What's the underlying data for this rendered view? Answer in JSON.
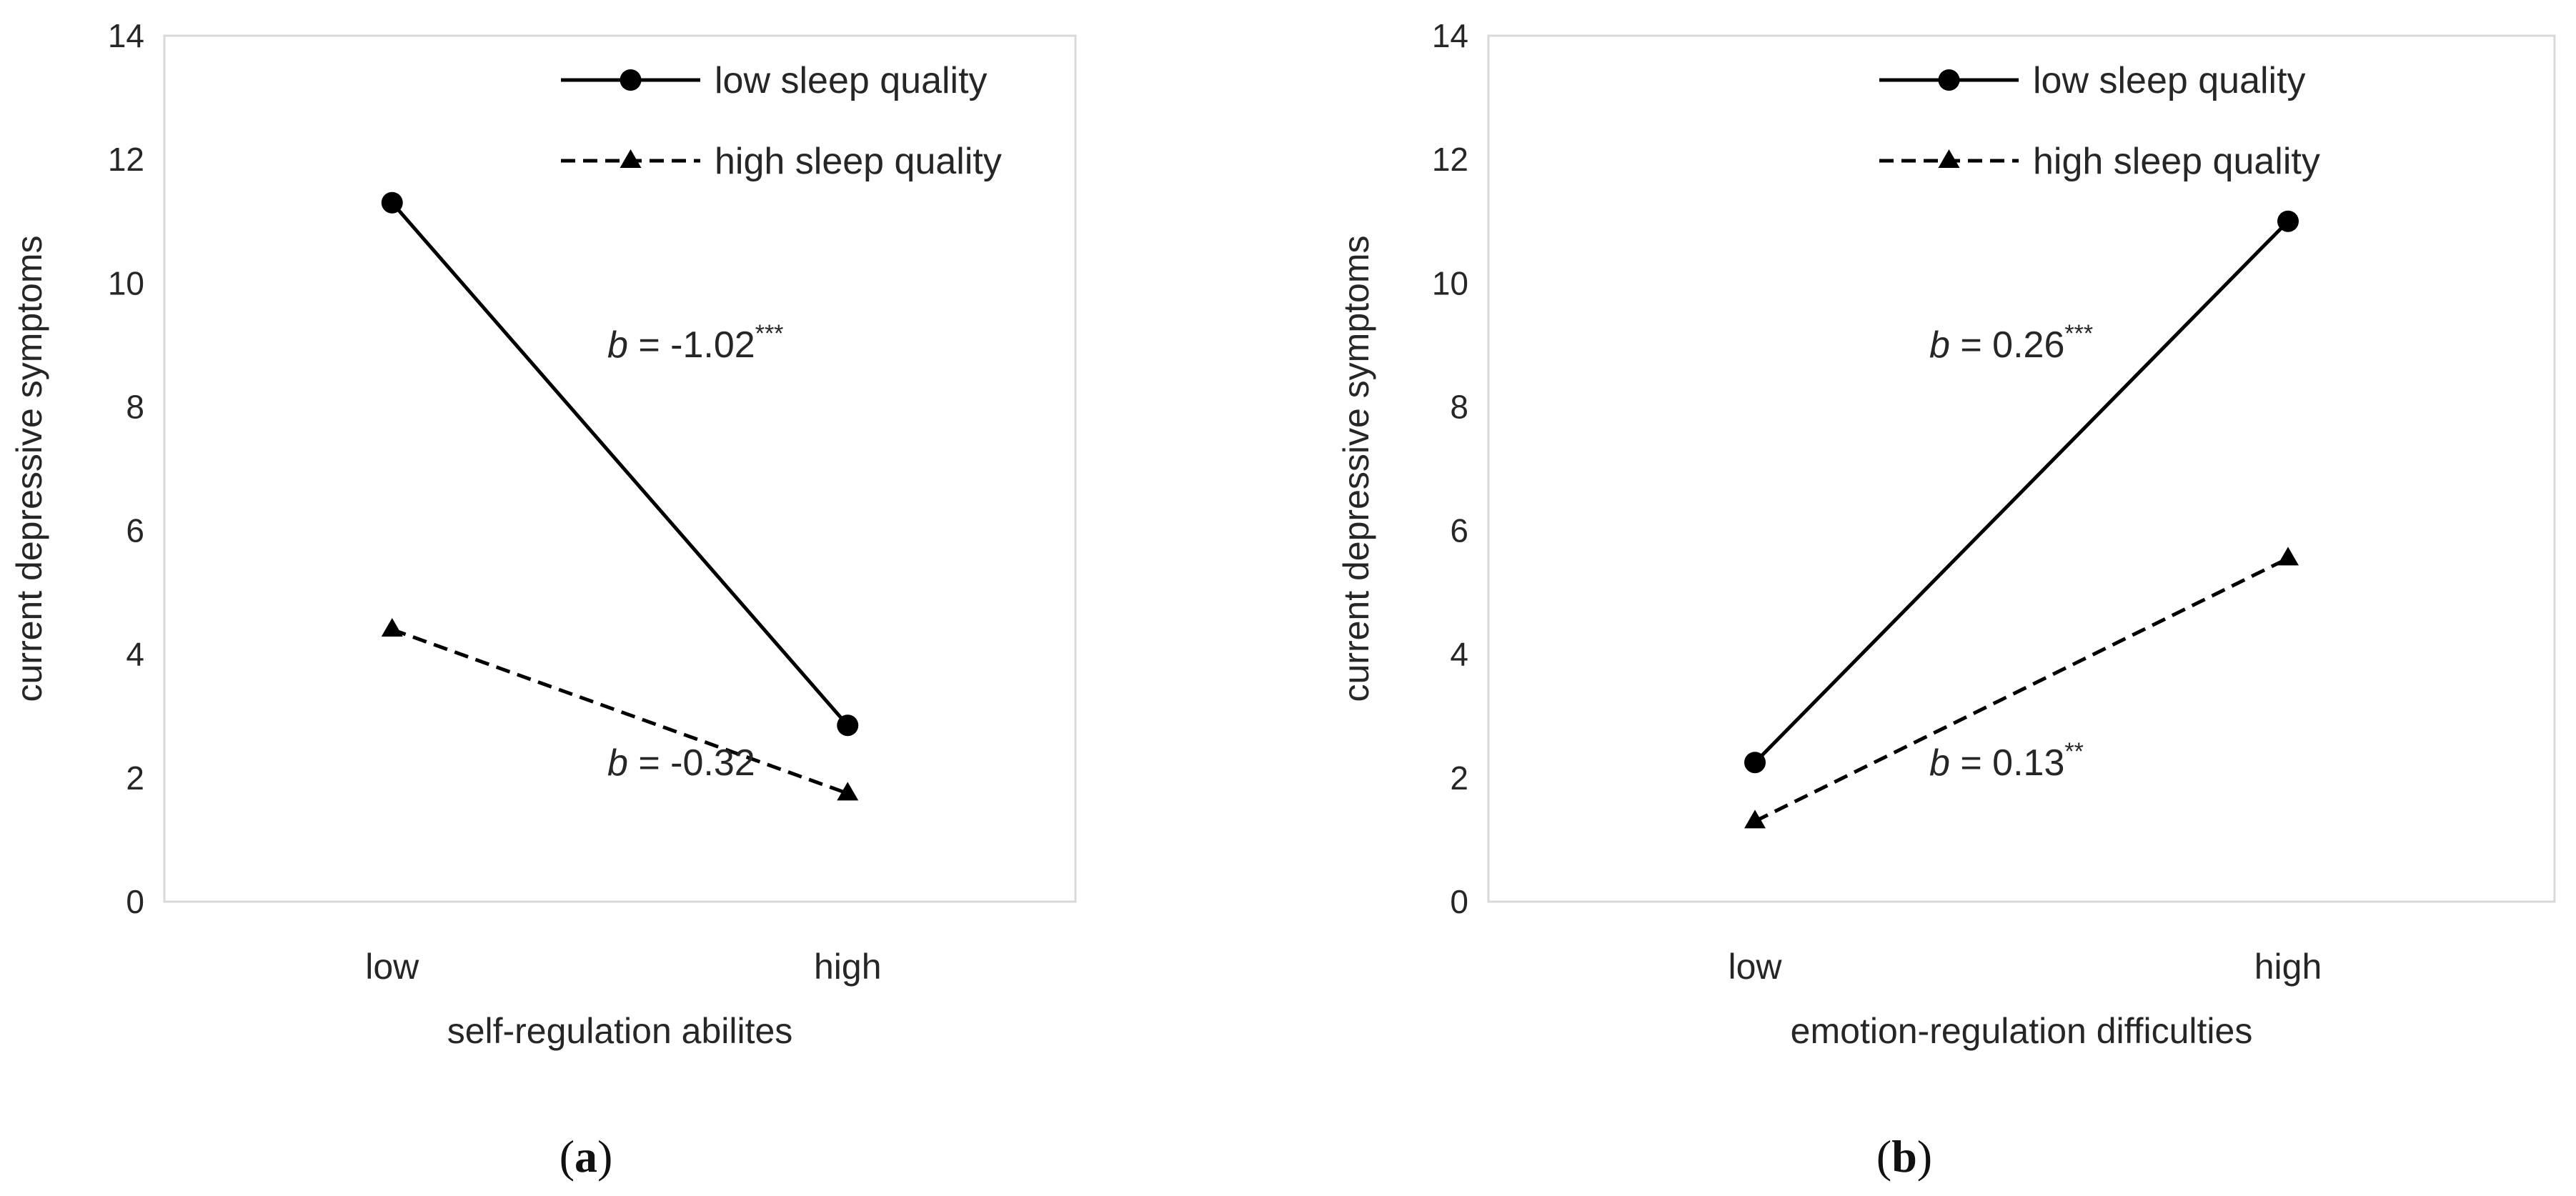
{
  "colors": {
    "series": "#000000",
    "plot_border": "#d9d9d9",
    "text": "#262626"
  },
  "chart_data": [
    {
      "type": "line",
      "caption_paren_open": "(",
      "caption_letter": "a",
      "caption_paren_close": ")",
      "xlabel": "self-regulation abilites",
      "ylabel": "current depressive symptoms",
      "categories": [
        "low",
        "high"
      ],
      "ylim": [
        0,
        14
      ],
      "yticks": [
        0,
        2,
        4,
        6,
        8,
        10,
        12,
        14
      ],
      "grid": false,
      "legend_position": "top-right",
      "series": [
        {
          "name": "low sleep quality",
          "values": [
            11.3,
            2.85
          ],
          "line_style": "solid",
          "marker": "circle"
        },
        {
          "name": "high sleep quality",
          "values": [
            4.4,
            1.75
          ],
          "line_style": "dashed",
          "marker": "triangle"
        }
      ],
      "annotations": [
        {
          "series": 0,
          "italic": "b",
          "text": " = -1.02",
          "sup": "***"
        },
        {
          "series": 1,
          "italic": "b",
          "text": " = -0.32",
          "sup": ""
        }
      ]
    },
    {
      "type": "line",
      "caption_paren_open": "(",
      "caption_letter": "b",
      "caption_paren_close": ")",
      "xlabel": "emotion-regulation difficulties",
      "ylabel": "current depressive symptoms",
      "categories": [
        "low",
        "high"
      ],
      "ylim": [
        0,
        14
      ],
      "yticks": [
        0,
        2,
        4,
        6,
        8,
        10,
        12,
        14
      ],
      "grid": false,
      "legend_position": "top-right",
      "series": [
        {
          "name": "low sleep quality",
          "values": [
            2.25,
            11.0
          ],
          "line_style": "solid",
          "marker": "circle"
        },
        {
          "name": "high sleep quality",
          "values": [
            1.3,
            5.55
          ],
          "line_style": "dashed",
          "marker": "triangle"
        }
      ],
      "annotations": [
        {
          "series": 0,
          "italic": "b",
          "text": " = 0.26",
          "sup": "***"
        },
        {
          "series": 1,
          "italic": "b",
          "text": " = 0.13",
          "sup": "**"
        }
      ]
    }
  ]
}
